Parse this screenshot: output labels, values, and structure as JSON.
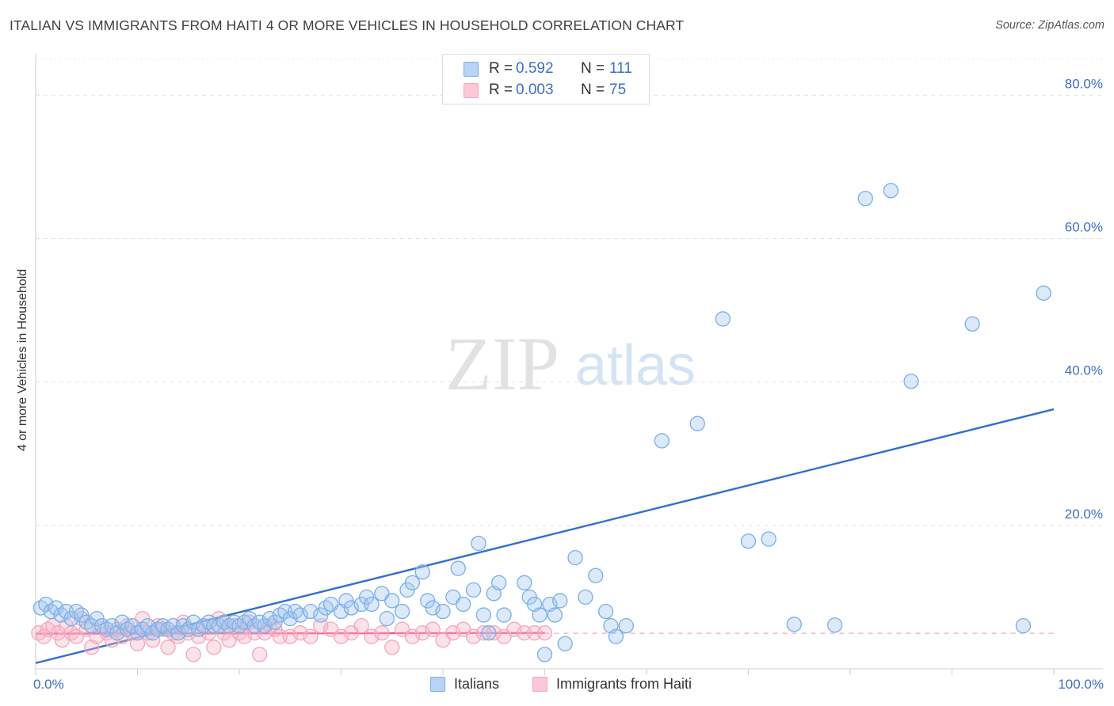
{
  "chart_data": {
    "type": "scatter",
    "title": "ITALIAN VS IMMIGRANTS FROM HAITI 4 OR MORE VEHICLES IN HOUSEHOLD CORRELATION CHART",
    "source": "Source: ZipAtlas.com",
    "xlabel": "",
    "ylabel": "4 or more Vehicles in Household",
    "xlim": [
      0,
      100
    ],
    "ylim": [
      0,
      85
    ],
    "x_tick_labels": [
      "0.0%",
      "100.0%"
    ],
    "y_ticks": [
      20,
      40,
      60,
      80
    ],
    "y_tick_labels": [
      "20.0%",
      "40.0%",
      "60.0%",
      "80.0%"
    ],
    "grid": true,
    "watermark": {
      "zip": "ZIP",
      "atlas": "atlas"
    },
    "legend": {
      "r_label": "R =",
      "n_label": "N =",
      "entries": [
        {
          "r": "0.592",
          "n": "111"
        },
        {
          "r": "0.003",
          "n": "75"
        }
      ]
    },
    "series": [
      {
        "name": "Italians",
        "color": "#7aaee8",
        "line_color": "#2f6fd0",
        "trend": {
          "x": [
            0,
            100
          ],
          "y": [
            0.8,
            36.2
          ]
        },
        "points": [
          [
            0.5,
            8.5
          ],
          [
            1,
            9
          ],
          [
            1.5,
            8
          ],
          [
            2,
            8.5
          ],
          [
            2.5,
            7.5
          ],
          [
            3,
            8
          ],
          [
            3.5,
            7
          ],
          [
            4,
            8
          ],
          [
            4.5,
            7.5
          ],
          [
            5,
            6.5
          ],
          [
            5.5,
            6
          ],
          [
            6,
            7
          ],
          [
            6.5,
            6
          ],
          [
            7,
            5.5
          ],
          [
            7.5,
            6
          ],
          [
            8,
            5
          ],
          [
            8.5,
            6.5
          ],
          [
            9,
            5.5
          ],
          [
            9.5,
            6
          ],
          [
            10,
            5
          ],
          [
            10.5,
            5.5
          ],
          [
            11,
            6
          ],
          [
            11.5,
            5
          ],
          [
            12,
            5.5
          ],
          [
            12.5,
            6
          ],
          [
            13,
            5.5
          ],
          [
            13.5,
            6
          ],
          [
            14,
            5
          ],
          [
            14.5,
            6
          ],
          [
            15,
            5.5
          ],
          [
            15.5,
            6.5
          ],
          [
            16,
            5.5
          ],
          [
            16.5,
            6
          ],
          [
            17,
            6.5
          ],
          [
            17.5,
            6
          ],
          [
            18,
            6
          ],
          [
            18.5,
            6.5
          ],
          [
            19,
            6
          ],
          [
            19.5,
            6.5
          ],
          [
            20,
            6
          ],
          [
            20.5,
            6.5
          ],
          [
            21,
            7
          ],
          [
            21.5,
            6
          ],
          [
            22,
            6.5
          ],
          [
            22.5,
            6
          ],
          [
            23,
            7
          ],
          [
            23.5,
            6.5
          ],
          [
            24,
            7.5
          ],
          [
            24.5,
            8
          ],
          [
            25,
            7
          ],
          [
            25.5,
            8
          ],
          [
            26,
            7.5
          ],
          [
            27,
            8
          ],
          [
            28,
            7.5
          ],
          [
            28.5,
            8.5
          ],
          [
            29,
            9
          ],
          [
            30,
            8
          ],
          [
            30.5,
            9.5
          ],
          [
            31,
            8.5
          ],
          [
            32,
            9
          ],
          [
            32.5,
            10
          ],
          [
            33,
            9
          ],
          [
            34,
            10.5
          ],
          [
            34.5,
            7
          ],
          [
            35,
            9.5
          ],
          [
            36,
            8
          ],
          [
            36.5,
            11
          ],
          [
            37,
            12
          ],
          [
            38,
            13.5
          ],
          [
            38.5,
            9.5
          ],
          [
            39,
            8.5
          ],
          [
            40,
            8
          ],
          [
            41,
            10
          ],
          [
            41.5,
            14
          ],
          [
            42,
            9
          ],
          [
            43,
            11
          ],
          [
            43.5,
            17.5
          ],
          [
            44,
            7.5
          ],
          [
            44.5,
            5
          ],
          [
            45,
            10.5
          ],
          [
            45.5,
            12
          ],
          [
            46,
            7.5
          ],
          [
            48,
            12
          ],
          [
            48.5,
            10
          ],
          [
            49,
            9
          ],
          [
            49.5,
            7.5
          ],
          [
            50,
            2
          ],
          [
            50.5,
            9
          ],
          [
            51,
            7.5
          ],
          [
            51.5,
            9.5
          ],
          [
            52,
            3.5
          ],
          [
            53,
            15.5
          ],
          [
            54,
            10
          ],
          [
            55,
            13
          ],
          [
            56,
            8
          ],
          [
            56.5,
            6
          ],
          [
            57,
            4.5
          ],
          [
            58,
            6
          ],
          [
            61.5,
            31.8
          ],
          [
            65,
            34.2
          ],
          [
            67.5,
            48.8
          ],
          [
            70,
            17.8
          ],
          [
            72,
            18.1
          ],
          [
            74.5,
            6.2
          ],
          [
            78.5,
            6.1
          ],
          [
            81.5,
            65.6
          ],
          [
            84,
            66.7
          ],
          [
            86,
            40.1
          ],
          [
            92,
            48.1
          ],
          [
            97,
            6
          ],
          [
            99,
            52.4
          ]
        ]
      },
      {
        "name": "Immigrants from Haiti",
        "color": "#f4a6bd",
        "line_color": "#e85a8a",
        "trend": {
          "x": [
            0,
            50
          ],
          "y": [
            4.9,
            5.0
          ]
        },
        "points": [
          [
            0.3,
            5
          ],
          [
            0.8,
            4.5
          ],
          [
            1.2,
            5.5
          ],
          [
            1.7,
            6
          ],
          [
            2.2,
            5
          ],
          [
            2.6,
            4
          ],
          [
            3,
            6
          ],
          [
            3.5,
            5
          ],
          [
            4,
            4.5
          ],
          [
            4.5,
            7
          ],
          [
            5,
            5.5
          ],
          [
            5.5,
            3
          ],
          [
            6,
            4.5
          ],
          [
            6.5,
            6
          ],
          [
            7,
            5
          ],
          [
            7.5,
            4
          ],
          [
            8,
            5.5
          ],
          [
            8.5,
            4.5
          ],
          [
            9,
            6
          ],
          [
            9.5,
            5
          ],
          [
            10,
            3.5
          ],
          [
            10.5,
            7
          ],
          [
            11,
            5
          ],
          [
            11.5,
            4
          ],
          [
            12,
            6
          ],
          [
            12.5,
            5.5
          ],
          [
            13,
            3
          ],
          [
            13.5,
            5
          ],
          [
            14,
            4.5
          ],
          [
            14.5,
            6.5
          ],
          [
            15,
            5
          ],
          [
            15.5,
            2
          ],
          [
            16,
            4.5
          ],
          [
            16.5,
            6
          ],
          [
            17,
            5
          ],
          [
            17.5,
            3
          ],
          [
            18,
            7
          ],
          [
            18.5,
            5
          ],
          [
            19,
            4
          ],
          [
            19.5,
            6
          ],
          [
            20,
            5
          ],
          [
            20.5,
            4.5
          ],
          [
            21,
            6.5
          ],
          [
            21.5,
            5
          ],
          [
            22,
            2
          ],
          [
            22.5,
            5
          ],
          [
            23,
            6
          ],
          [
            23.5,
            5.5
          ],
          [
            24,
            4.5
          ],
          [
            25,
            4.5
          ],
          [
            26,
            5
          ],
          [
            27,
            4.5
          ],
          [
            28,
            6
          ],
          [
            29,
            5.5
          ],
          [
            30,
            4.5
          ],
          [
            31,
            5
          ],
          [
            32,
            6
          ],
          [
            33,
            4.5
          ],
          [
            34,
            5
          ],
          [
            35,
            3
          ],
          [
            36,
            5.5
          ],
          [
            37,
            4.5
          ],
          [
            38,
            5
          ],
          [
            39,
            5.5
          ],
          [
            40,
            4
          ],
          [
            41,
            5
          ],
          [
            42,
            5.5
          ],
          [
            43,
            4.5
          ],
          [
            44,
            5
          ],
          [
            45,
            5
          ],
          [
            46,
            4.5
          ],
          [
            47,
            5.5
          ],
          [
            48,
            5
          ],
          [
            49,
            5
          ],
          [
            50,
            5
          ]
        ]
      }
    ]
  },
  "bottom_legend": [
    {
      "label": "Italians"
    },
    {
      "label": "Immigrants from Haiti"
    }
  ]
}
